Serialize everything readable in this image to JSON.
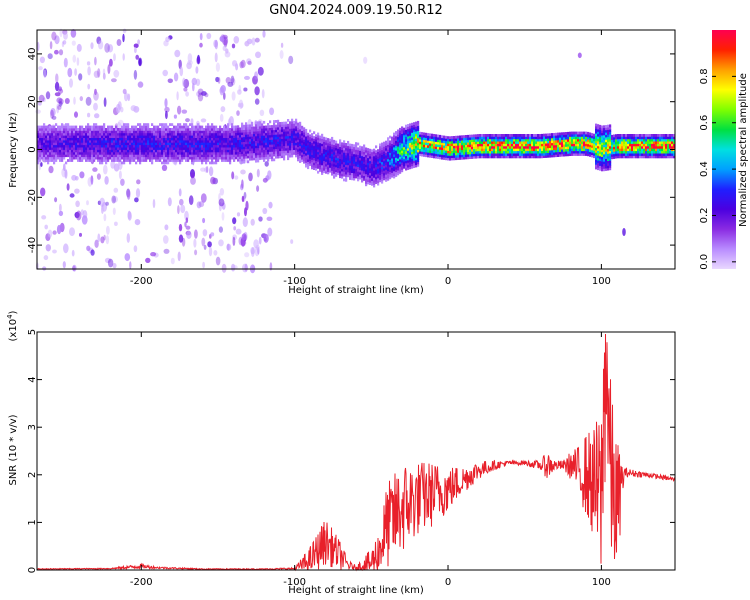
{
  "title": "GN04.2024.009.19.50.R12",
  "colors": {
    "snr_line": "#e8202a",
    "axes": "#000000",
    "colormap_stops": [
      "#e9d8ff",
      "#b98cff",
      "#8a2be2",
      "#4b00e0",
      "#1f1fff",
      "#00a0ff",
      "#00e0e0",
      "#00e040",
      "#80ff00",
      "#ffff00",
      "#ffa000",
      "#ff2000",
      "#ff0050"
    ]
  },
  "chart_data": [
    {
      "type": "heatmap",
      "xlabel": "Height of straight line (km)",
      "ylabel": "Frequency (Hz)",
      "xlim": [
        -268,
        148
      ],
      "ylim": [
        -50,
        50
      ],
      "xticks": [
        -200,
        -100,
        0,
        100
      ],
      "yticks": [
        -40,
        -20,
        0,
        20,
        40
      ],
      "ridge": {
        "x": [
          -268,
          -220,
          -180,
          -140,
          -100,
          -90,
          -80,
          -70,
          -60,
          -50,
          -40,
          -30,
          -20,
          -10,
          0,
          20,
          60,
          80,
          90,
          100,
          110,
          148
        ],
        "y": [
          3,
          3,
          3,
          3,
          5,
          0,
          -2,
          -4,
          -5,
          -7,
          -4,
          1,
          3,
          2,
          1,
          2,
          2,
          3,
          3,
          1,
          2,
          2
        ],
        "amplitude": [
          0.25,
          0.3,
          0.3,
          0.3,
          0.3,
          0.3,
          0.3,
          0.3,
          0.3,
          0.3,
          0.35,
          0.6,
          0.8,
          0.85,
          0.9,
          0.95,
          0.95,
          0.95,
          0.9,
          0.7,
          0.9,
          0.95
        ]
      },
      "noise_regions": [
        [
          -268,
          -200
        ],
        [
          -185,
          -115
        ]
      ]
    },
    {
      "type": "colorbar",
      "label": "Normalized spectral amplitude",
      "range": [
        0,
        1
      ],
      "ticks": [
        "0.0",
        "0.2",
        "0.4",
        "0.6",
        "0.8"
      ]
    },
    {
      "type": "line",
      "xlabel": "Height of straight line (km)",
      "ylabel": "SNR (10 * v/v)",
      "scale_label": "(x10",
      "scale_exp": "4",
      "scale_close": ")",
      "xlim": [
        -268,
        148
      ],
      "ylim": [
        0,
        5
      ],
      "xticks": [
        -200,
        -100,
        0,
        100
      ],
      "yticks": [
        0,
        1,
        2,
        3,
        4,
        5
      ],
      "x": [
        -268,
        -220,
        -200,
        -190,
        -160,
        -120,
        -100,
        -90,
        -80,
        -75,
        -70,
        -65,
        -60,
        -50,
        -45,
        -40,
        -30,
        -20,
        -10,
        0,
        10,
        20,
        30,
        40,
        50,
        60,
        65,
        70,
        75,
        80,
        85,
        90,
        95,
        100,
        103,
        106,
        110,
        115,
        130,
        148
      ],
      "y": [
        0.02,
        0.03,
        0.08,
        0.05,
        0.02,
        0.02,
        0.03,
        0.2,
        0.6,
        0.45,
        0.3,
        0.1,
        0.05,
        0.15,
        0.4,
        0.9,
        1.3,
        1.5,
        1.6,
        1.7,
        1.9,
        2.1,
        2.2,
        2.25,
        2.25,
        2.2,
        2.2,
        2.2,
        2.2,
        2.2,
        2.1,
        2.0,
        1.8,
        1.5,
        4.7,
        2.0,
        1.3,
        2.05,
        2.0,
        1.9
      ],
      "volatility": [
        0.01,
        0.01,
        0.05,
        0.02,
        0.01,
        0.01,
        0.02,
        0.3,
        0.5,
        0.4,
        0.3,
        0.1,
        0.05,
        0.3,
        0.5,
        0.9,
        1.0,
        0.8,
        0.7,
        0.5,
        0.3,
        0.2,
        0.1,
        0.05,
        0.05,
        0.1,
        0.3,
        0.1,
        0.1,
        0.3,
        0.5,
        0.9,
        1.2,
        2.0,
        2.5,
        2.0,
        1.5,
        0.1,
        0.05,
        0.05
      ]
    }
  ]
}
